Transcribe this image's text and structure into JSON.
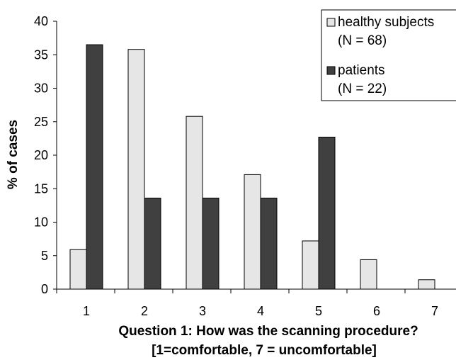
{
  "chart_data": {
    "type": "bar",
    "title": "",
    "xlabel_line1": "Question 1: How was the scanning procedure?",
    "xlabel_line2": "[1=comfortable, 7 = uncomfortable]",
    "ylabel": "% of cases",
    "categories": [
      "1",
      "2",
      "3",
      "4",
      "5",
      "6",
      "7"
    ],
    "ylim": [
      0,
      40
    ],
    "yticks": [
      0,
      5,
      10,
      15,
      20,
      25,
      30,
      35,
      40
    ],
    "grid": false,
    "legend_position": "top-right",
    "series": [
      {
        "name": "healthy subjects",
        "name_line2": "(N = 68)",
        "color": "#e6e6e6",
        "values": [
          5.9,
          35.8,
          25.8,
          17.1,
          7.2,
          4.4,
          1.4
        ]
      },
      {
        "name": "patients",
        "name_line2": "(N = 22)",
        "color": "#404040",
        "values": [
          36.5,
          13.6,
          13.6,
          13.6,
          22.7,
          0,
          0
        ]
      }
    ]
  }
}
